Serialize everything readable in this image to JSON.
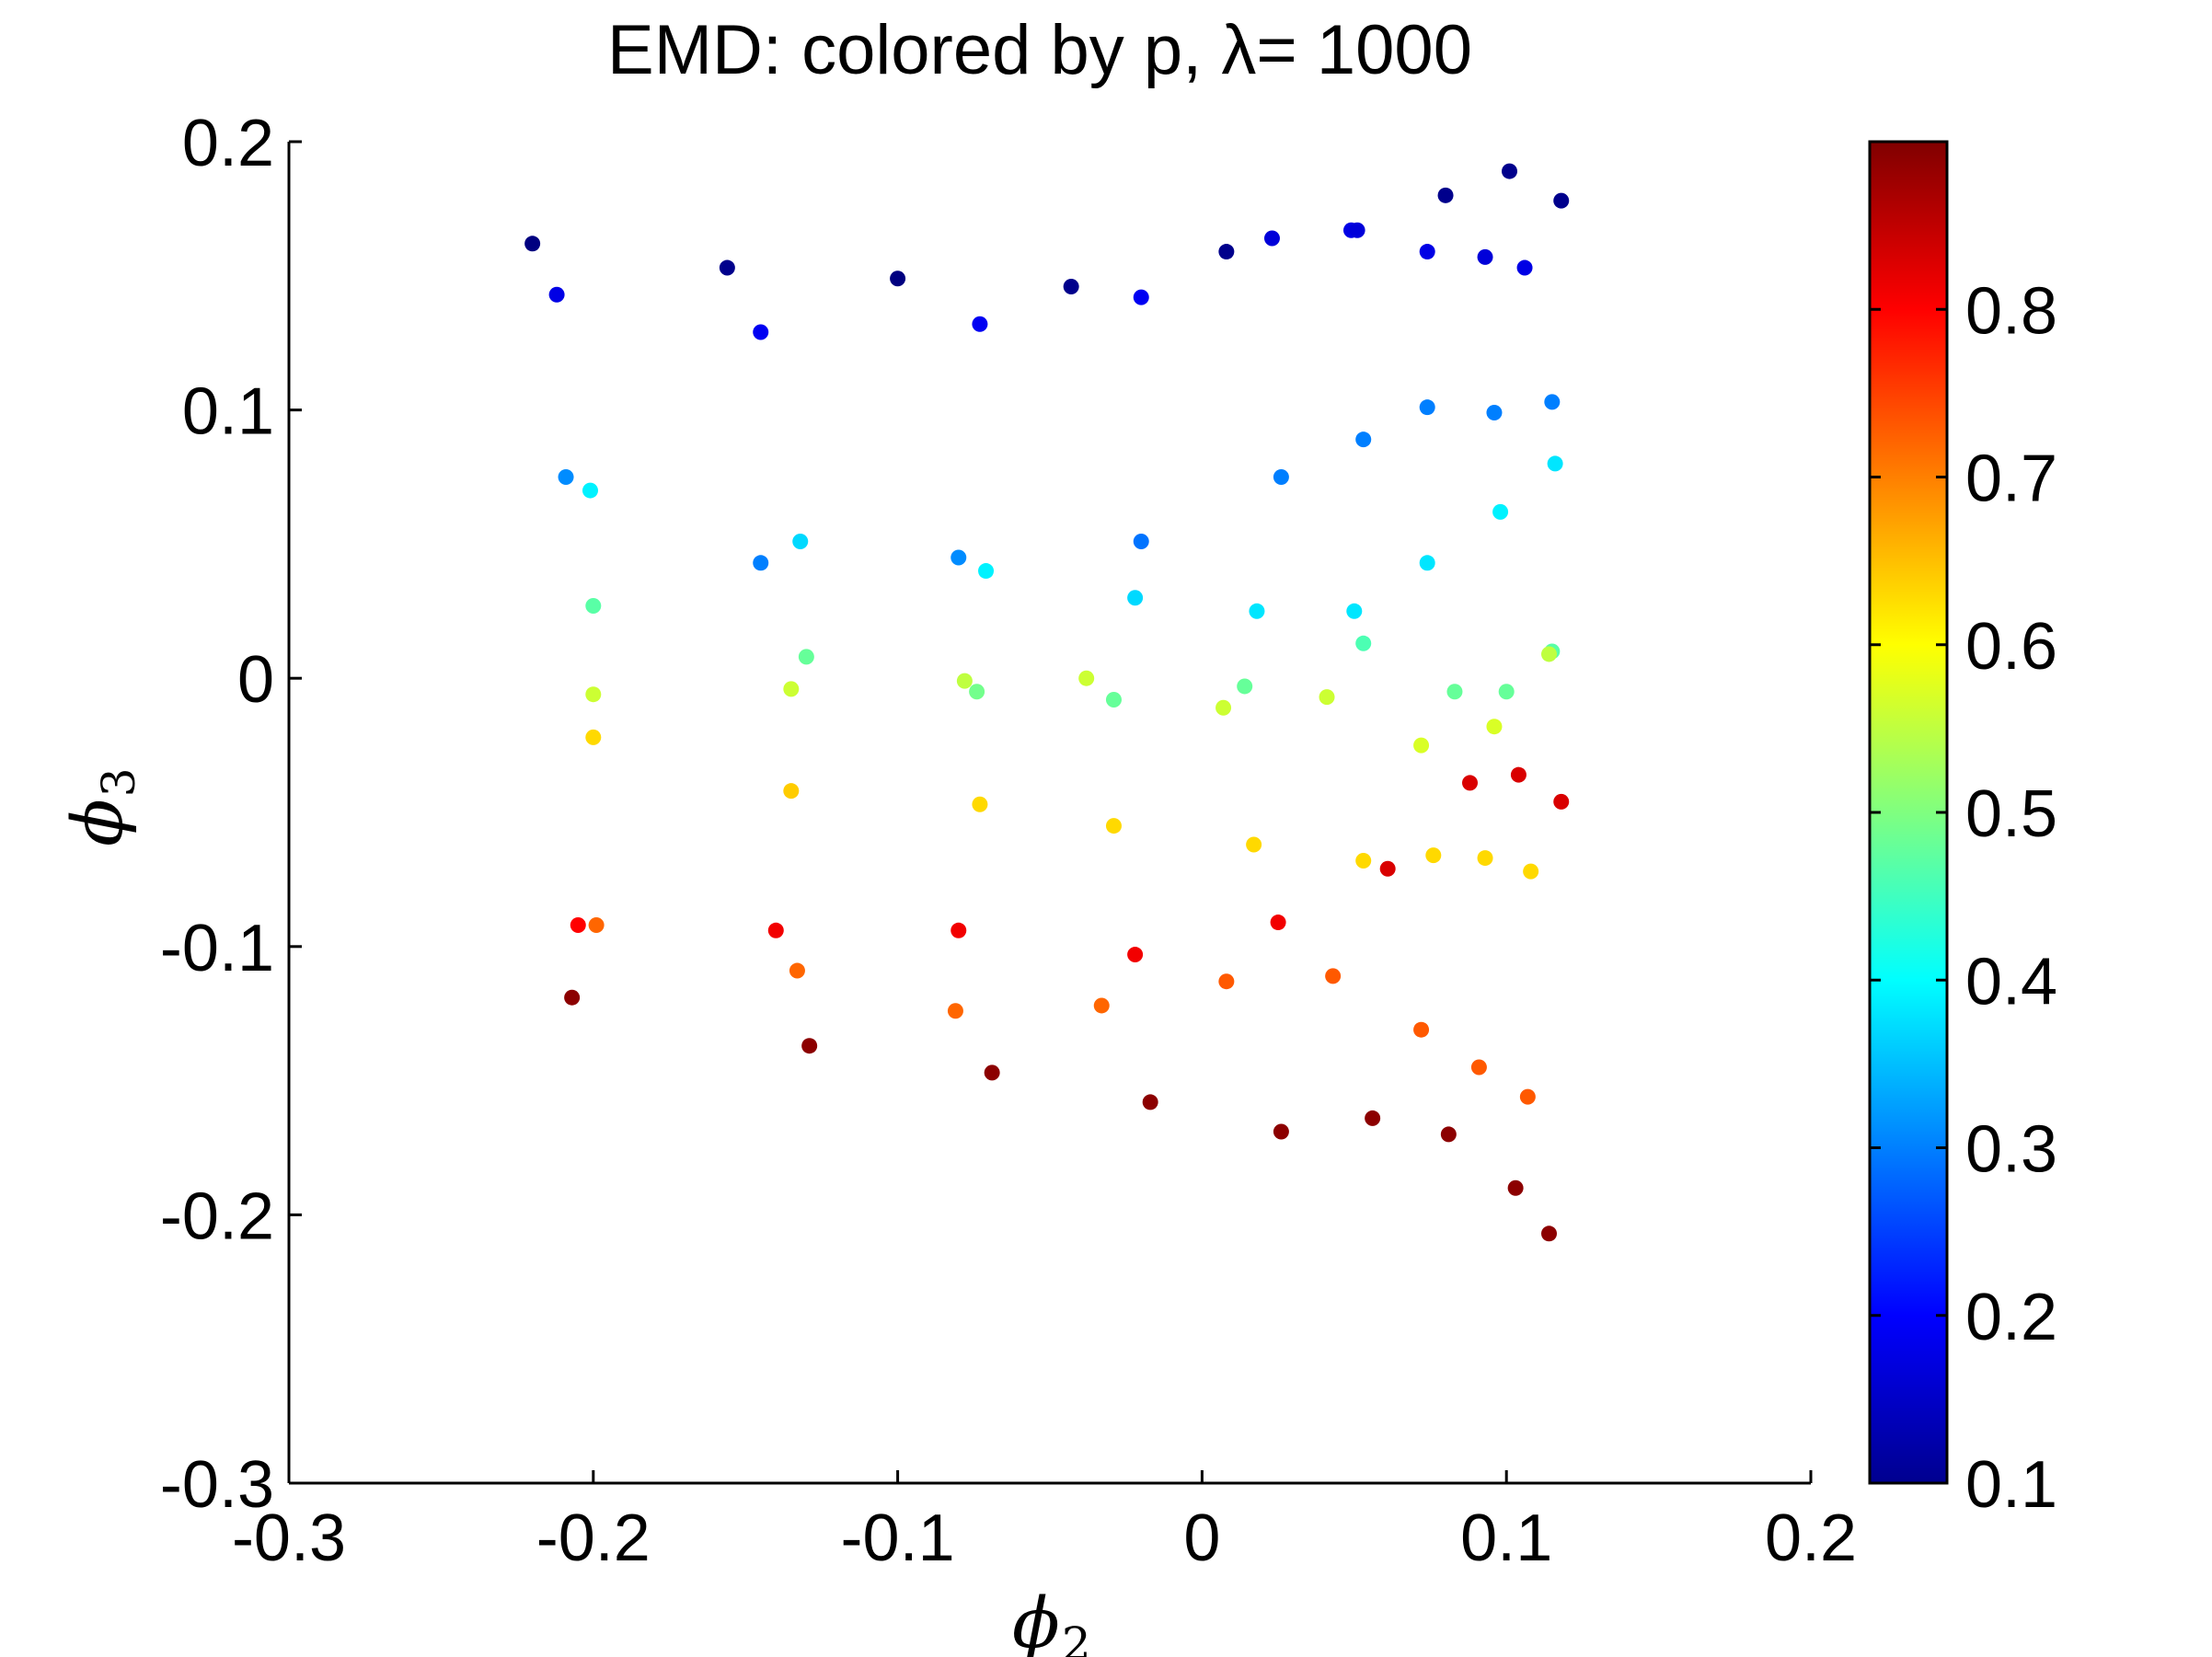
{
  "chart_data": {
    "type": "scatter",
    "title": "EMD: colored by p, λ= 1000",
    "xlabel": "ϕ",
    "xlabel_sub": "2",
    "ylabel": "ϕ",
    "ylabel_sub": "3",
    "xlim": [
      -0.3,
      0.2
    ],
    "ylim": [
      -0.3,
      0.2
    ],
    "xticks": [
      -0.3,
      -0.2,
      -0.1,
      0,
      0.1,
      0.2
    ],
    "xtick_labels": [
      "-0.3",
      "-0.2",
      "-0.1",
      "0",
      "0.1",
      "0.2"
    ],
    "yticks": [
      -0.3,
      -0.2,
      -0.1,
      0,
      0.1,
      0.2
    ],
    "ytick_labels": [
      "-0.3",
      "-0.2",
      "-0.1",
      "0",
      "0.1",
      "0.2"
    ],
    "colormap": "jet",
    "clim": [
      0.1,
      0.9
    ],
    "colorbar_ticks": [
      0.1,
      0.2,
      0.3,
      0.4,
      0.5,
      0.6,
      0.7,
      0.8
    ],
    "colorbar_tick_labels": [
      "0.1",
      "0.2",
      "0.3",
      "0.4",
      "0.5",
      "0.6",
      "0.7",
      "0.8"
    ],
    "grid": false,
    "points": [
      {
        "x": -0.22,
        "y": 0.162,
        "c": 0.1
      },
      {
        "x": -0.212,
        "y": 0.143,
        "c": 0.18
      },
      {
        "x": -0.156,
        "y": 0.153,
        "c": 0.11
      },
      {
        "x": -0.145,
        "y": 0.129,
        "c": 0.19
      },
      {
        "x": -0.1,
        "y": 0.149,
        "c": 0.1
      },
      {
        "x": -0.073,
        "y": 0.132,
        "c": 0.19
      },
      {
        "x": -0.043,
        "y": 0.146,
        "c": 0.11
      },
      {
        "x": -0.02,
        "y": 0.142,
        "c": 0.19
      },
      {
        "x": 0.008,
        "y": 0.159,
        "c": 0.11
      },
      {
        "x": 0.023,
        "y": 0.164,
        "c": 0.17
      },
      {
        "x": 0.049,
        "y": 0.167,
        "c": 0.18
      },
      {
        "x": 0.051,
        "y": 0.167,
        "c": 0.17
      },
      {
        "x": 0.074,
        "y": 0.159,
        "c": 0.18
      },
      {
        "x": 0.08,
        "y": 0.18,
        "c": 0.11
      },
      {
        "x": 0.093,
        "y": 0.157,
        "c": 0.17
      },
      {
        "x": 0.101,
        "y": 0.189,
        "c": 0.11
      },
      {
        "x": 0.106,
        "y": 0.153,
        "c": 0.18
      },
      {
        "x": 0.118,
        "y": 0.178,
        "c": 0.11
      },
      {
        "x": -0.209,
        "y": 0.075,
        "c": 0.31
      },
      {
        "x": -0.201,
        "y": 0.07,
        "c": 0.39
      },
      {
        "x": -0.2,
        "y": 0.027,
        "c": 0.47
      },
      {
        "x": -0.145,
        "y": 0.043,
        "c": 0.3
      },
      {
        "x": -0.132,
        "y": 0.051,
        "c": 0.37
      },
      {
        "x": -0.08,
        "y": 0.045,
        "c": 0.31
      },
      {
        "x": -0.071,
        "y": 0.04,
        "c": 0.39
      },
      {
        "x": -0.02,
        "y": 0.051,
        "c": 0.29
      },
      {
        "x": -0.022,
        "y": 0.03,
        "c": 0.37
      },
      {
        "x": 0.018,
        "y": 0.025,
        "c": 0.38
      },
      {
        "x": 0.026,
        "y": 0.075,
        "c": 0.3
      },
      {
        "x": 0.05,
        "y": 0.025,
        "c": 0.38
      },
      {
        "x": 0.053,
        "y": 0.089,
        "c": 0.3
      },
      {
        "x": 0.053,
        "y": 0.013,
        "c": 0.46
      },
      {
        "x": 0.074,
        "y": 0.101,
        "c": 0.3
      },
      {
        "x": 0.074,
        "y": 0.043,
        "c": 0.38
      },
      {
        "x": 0.096,
        "y": 0.099,
        "c": 0.3
      },
      {
        "x": 0.098,
        "y": 0.062,
        "c": 0.39
      },
      {
        "x": 0.115,
        "y": 0.103,
        "c": 0.3
      },
      {
        "x": 0.116,
        "y": 0.08,
        "c": 0.38
      },
      {
        "x": 0.115,
        "y": 0.01,
        "c": 0.47
      },
      {
        "x": -0.2,
        "y": -0.006,
        "c": 0.56
      },
      {
        "x": -0.2,
        "y": -0.022,
        "c": 0.63
      },
      {
        "x": -0.13,
        "y": 0.008,
        "c": 0.48
      },
      {
        "x": -0.135,
        "y": -0.004,
        "c": 0.56
      },
      {
        "x": -0.135,
        "y": -0.042,
        "c": 0.64
      },
      {
        "x": -0.078,
        "y": -0.001,
        "c": 0.55
      },
      {
        "x": -0.074,
        "y": -0.005,
        "c": 0.49
      },
      {
        "x": -0.073,
        "y": -0.047,
        "c": 0.63
      },
      {
        "x": -0.038,
        "y": 0.0,
        "c": 0.56
      },
      {
        "x": -0.029,
        "y": -0.008,
        "c": 0.48
      },
      {
        "x": -0.029,
        "y": -0.055,
        "c": 0.63
      },
      {
        "x": 0.007,
        "y": -0.011,
        "c": 0.56
      },
      {
        "x": 0.014,
        "y": -0.003,
        "c": 0.48
      },
      {
        "x": 0.017,
        "y": -0.062,
        "c": 0.63
      },
      {
        "x": 0.041,
        "y": -0.007,
        "c": 0.56
      },
      {
        "x": 0.053,
        "y": -0.068,
        "c": 0.63
      },
      {
        "x": 0.061,
        "y": -0.071,
        "c": 0.83
      },
      {
        "x": 0.072,
        "y": -0.025,
        "c": 0.57
      },
      {
        "x": 0.076,
        "y": -0.066,
        "c": 0.63
      },
      {
        "x": 0.083,
        "y": -0.005,
        "c": 0.48
      },
      {
        "x": 0.088,
        "y": -0.039,
        "c": 0.83
      },
      {
        "x": 0.093,
        "y": -0.067,
        "c": 0.63
      },
      {
        "x": 0.096,
        "y": -0.018,
        "c": 0.57
      },
      {
        "x": 0.1,
        "y": -0.005,
        "c": 0.48
      },
      {
        "x": 0.104,
        "y": -0.036,
        "c": 0.83
      },
      {
        "x": 0.108,
        "y": -0.072,
        "c": 0.63
      },
      {
        "x": 0.114,
        "y": 0.009,
        "c": 0.55
      },
      {
        "x": 0.118,
        "y": -0.046,
        "c": 0.83
      },
      {
        "x": -0.205,
        "y": -0.092,
        "c": 0.8
      },
      {
        "x": -0.199,
        "y": -0.092,
        "c": 0.72
      },
      {
        "x": -0.207,
        "y": -0.119,
        "c": 0.89
      },
      {
        "x": -0.14,
        "y": -0.094,
        "c": 0.81
      },
      {
        "x": -0.133,
        "y": -0.109,
        "c": 0.72
      },
      {
        "x": -0.129,
        "y": -0.137,
        "c": 0.89
      },
      {
        "x": -0.08,
        "y": -0.094,
        "c": 0.81
      },
      {
        "x": -0.081,
        "y": -0.124,
        "c": 0.72
      },
      {
        "x": -0.069,
        "y": -0.147,
        "c": 0.89
      },
      {
        "x": -0.022,
        "y": -0.103,
        "c": 0.81
      },
      {
        "x": -0.033,
        "y": -0.122,
        "c": 0.72
      },
      {
        "x": -0.017,
        "y": -0.158,
        "c": 0.89
      },
      {
        "x": 0.008,
        "y": -0.113,
        "c": 0.73
      },
      {
        "x": 0.025,
        "y": -0.091,
        "c": 0.81
      },
      {
        "x": 0.026,
        "y": -0.169,
        "c": 0.89
      },
      {
        "x": 0.043,
        "y": -0.111,
        "c": 0.73
      },
      {
        "x": 0.056,
        "y": -0.164,
        "c": 0.89
      },
      {
        "x": 0.072,
        "y": -0.131,
        "c": 0.73
      },
      {
        "x": 0.081,
        "y": -0.17,
        "c": 0.89
      },
      {
        "x": 0.091,
        "y": -0.145,
        "c": 0.73
      },
      {
        "x": 0.107,
        "y": -0.156,
        "c": 0.73
      },
      {
        "x": 0.103,
        "y": -0.19,
        "c": 0.89
      },
      {
        "x": 0.114,
        "y": -0.207,
        "c": 0.89
      }
    ]
  }
}
